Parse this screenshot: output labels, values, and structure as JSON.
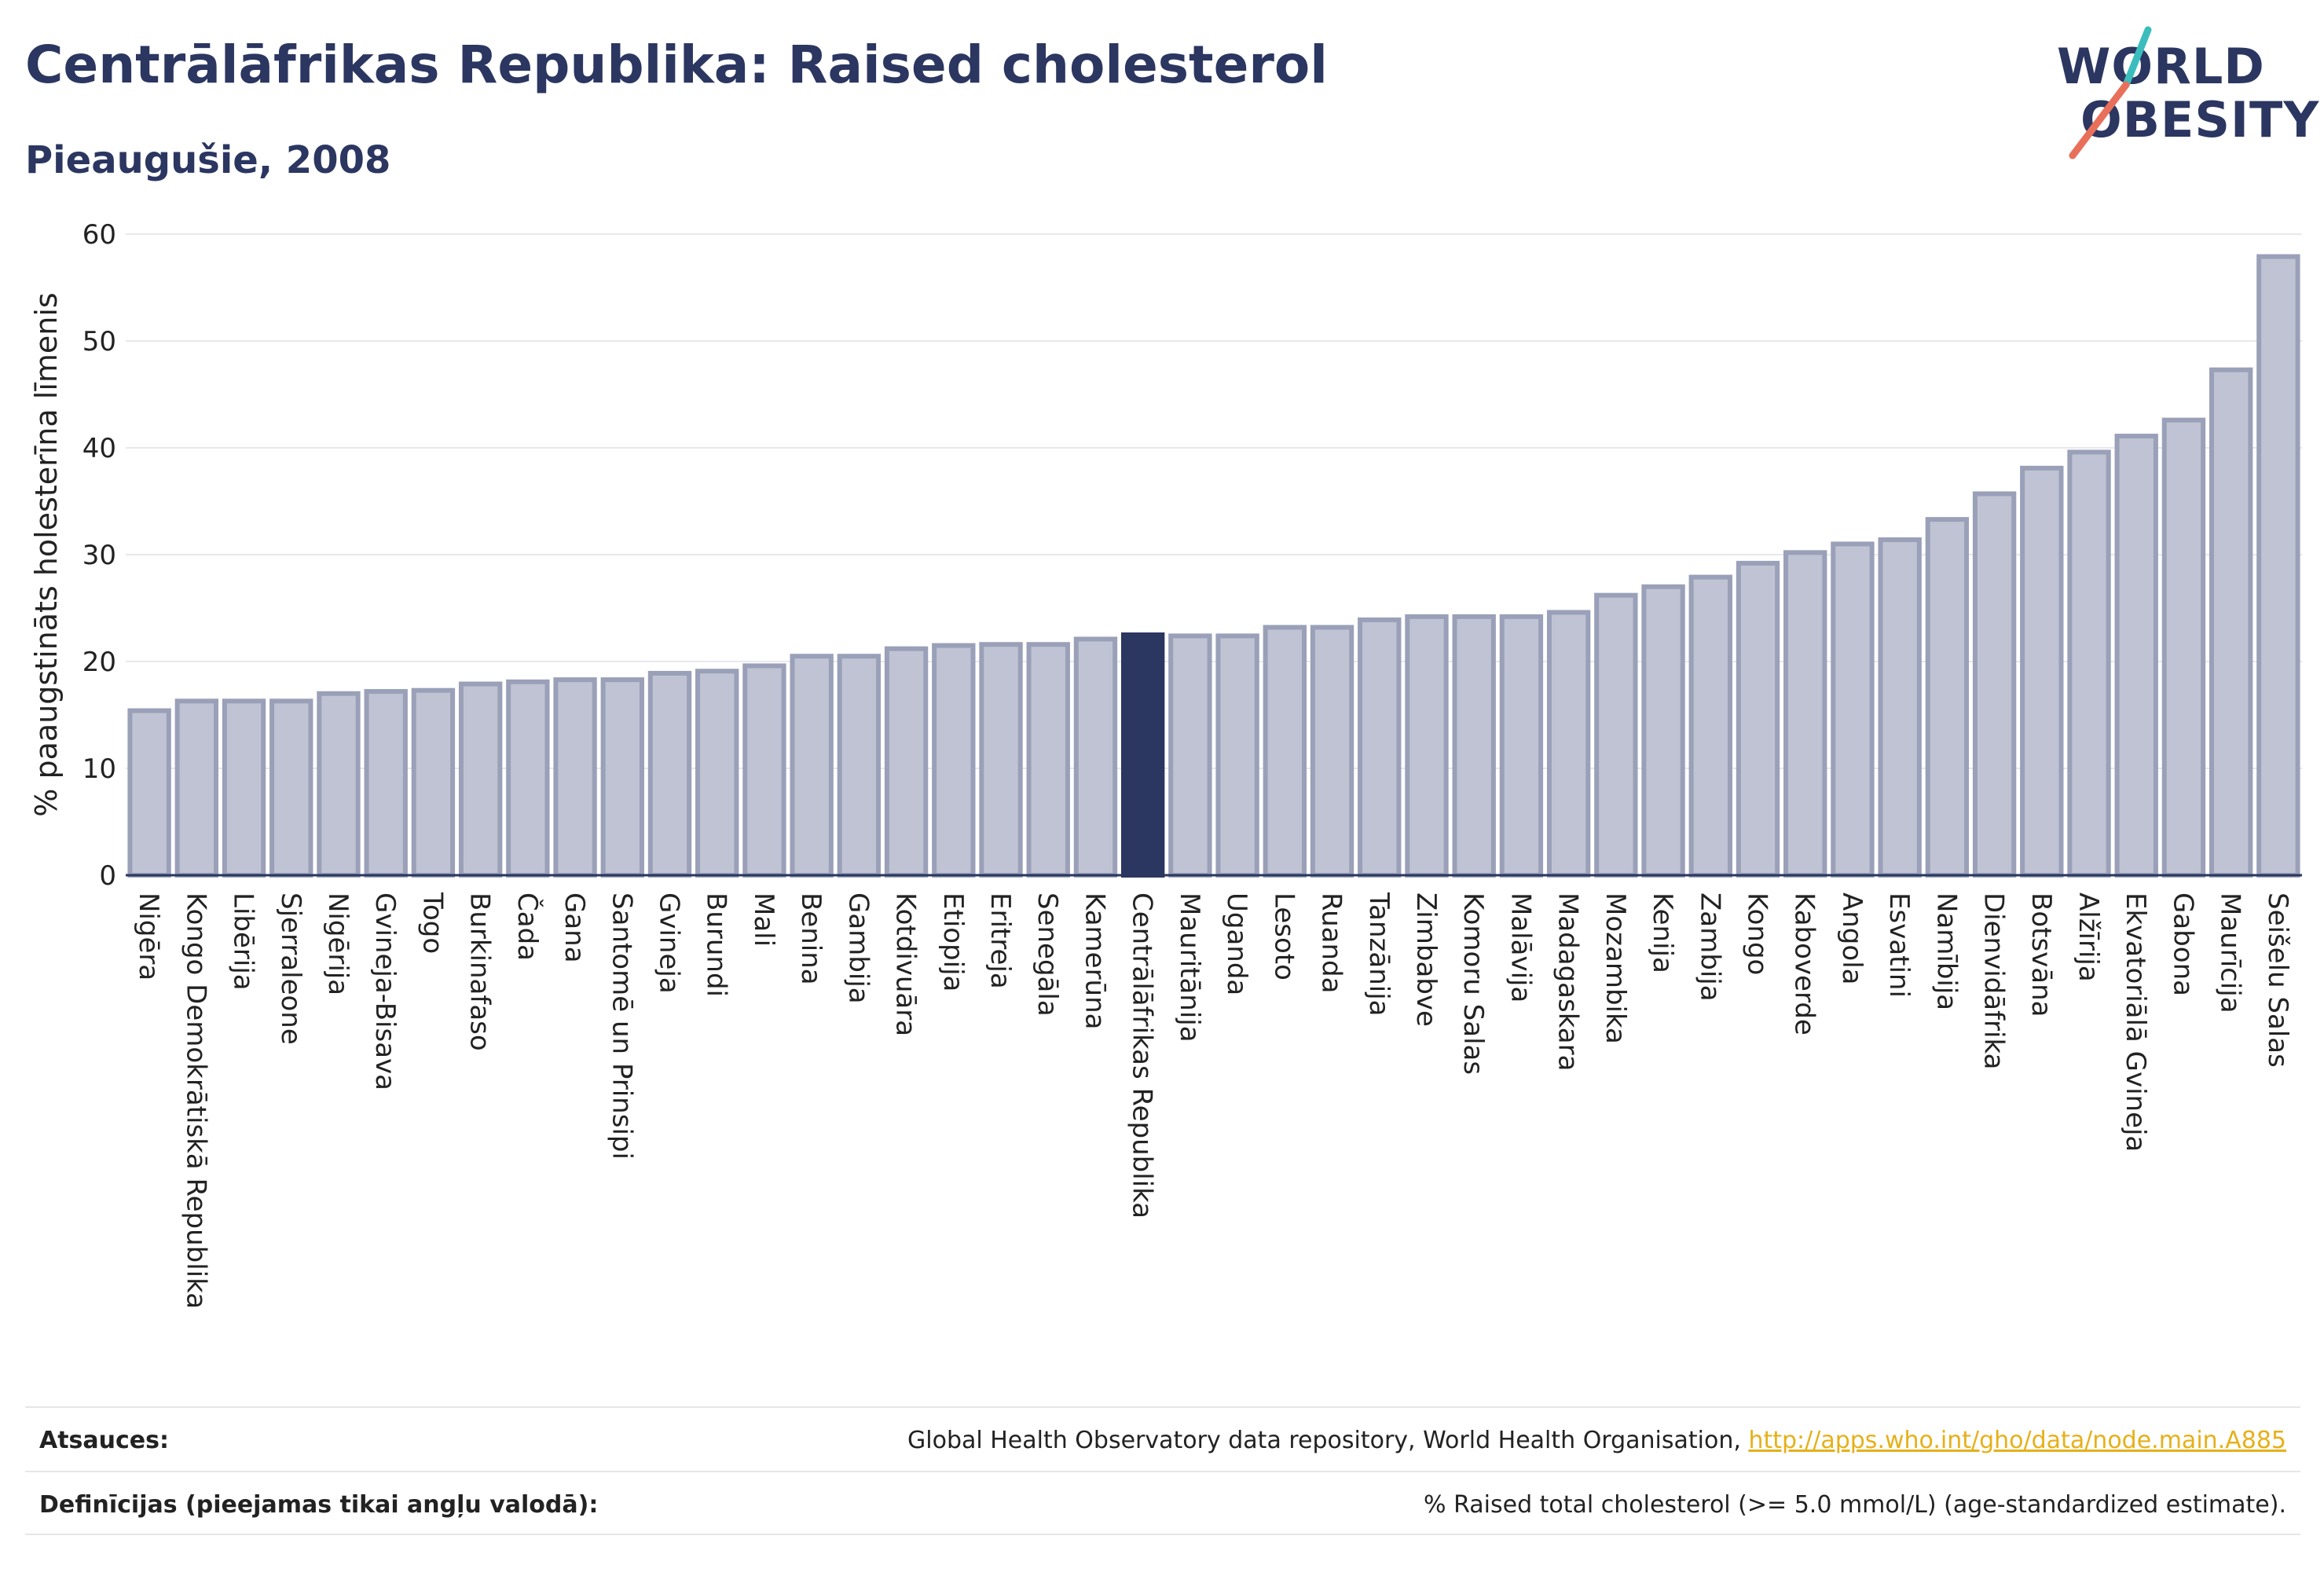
{
  "header": {
    "title": "Centrālāfrikas Republika: Raised cholesterol",
    "subtitle": "Pieaugušie, 2008"
  },
  "logo": {
    "line1": "WORLD",
    "line2": "OBESITY",
    "colors": {
      "text": "#2b3661",
      "slash_top": "#3bbdbd",
      "slash_bottom": "#e8705a"
    }
  },
  "chart_data": {
    "type": "bar",
    "ylabel": "% paaugstināts holesterīna līmenis",
    "ylim": [
      0,
      60
    ],
    "yticks": [
      0,
      10,
      20,
      30,
      40,
      50,
      60
    ],
    "grid": true,
    "highlight": "Centrālāfrikas Republika",
    "colors": {
      "bar": "#bfc3d3",
      "bar_edge": "#9aa0b8",
      "highlight": "#2b3661"
    },
    "categories": [
      "Nigēra",
      "Kongo Demokrātiskā Republika",
      "Libērija",
      "Sjerraleone",
      "Nigērija",
      "Gvineja-Bisava",
      "Togo",
      "Burkinafaso",
      "Čada",
      "Gana",
      "Santomē un Prinsipi",
      "Gvineja",
      "Burundi",
      "Mali",
      "Benina",
      "Gambija",
      "Kotdivuāra",
      "Etiopija",
      "Eritreja",
      "Senegāla",
      "Kamerūna",
      "Centrālāfrikas Republika",
      "Mauritānija",
      "Uganda",
      "Lesoto",
      "Ruanda",
      "Tanzānija",
      "Zimbabve",
      "Komoru Salas",
      "Malāvija",
      "Madagaskara",
      "Mozambika",
      "Kenija",
      "Zambija",
      "Kongo",
      "Kaboverde",
      "Angola",
      "Esvatini",
      "Namībija",
      "Dienvidāfrika",
      "Botsvāna",
      "Alžīrija",
      "Ekvatoriālā Gvineja",
      "Gabona",
      "Maurīcija",
      "Seišelu Salas"
    ],
    "values": [
      15.4,
      16.3,
      16.3,
      16.3,
      17.0,
      17.2,
      17.3,
      17.9,
      18.1,
      18.3,
      18.3,
      18.9,
      19.1,
      19.6,
      20.5,
      20.5,
      21.2,
      21.5,
      21.6,
      21.6,
      22.1,
      22.5,
      22.4,
      22.4,
      23.2,
      23.2,
      23.9,
      24.2,
      24.2,
      24.2,
      24.6,
      26.2,
      27.0,
      27.9,
      29.2,
      30.2,
      31.0,
      31.4,
      33.3,
      35.7,
      38.1,
      39.6,
      41.1,
      42.6,
      47.3,
      57.9
    ]
  },
  "footer": {
    "sources_label": "Atsauces:",
    "sources_text": "Global Health Observatory data repository, World Health Organisation, ",
    "sources_link": "http://apps.who.int/gho/data/node.main.A885",
    "definitions_label": "Definīcijas (pieejamas tikai angļu valodā):",
    "definitions_text": "% Raised total cholesterol (>= 5.0 mmol/L) (age-standardized estimate)."
  }
}
